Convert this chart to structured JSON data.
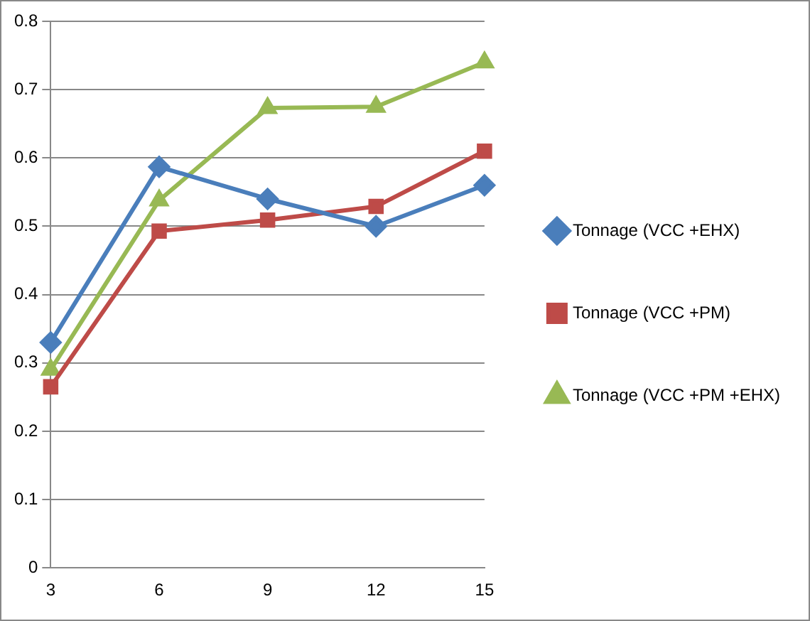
{
  "chart_data": {
    "type": "line",
    "categories": [
      "3",
      "6",
      "9",
      "12",
      "15"
    ],
    "series": [
      {
        "name": "Tonnage (VCC +EHX)",
        "color": "#4a7ebb",
        "marker": "diamond",
        "values": [
          0.33,
          0.587,
          0.54,
          0.5,
          0.56
        ]
      },
      {
        "name": "Tonnage (VCC +PM)",
        "color": "#be4b48",
        "marker": "square",
        "values": [
          0.265,
          0.493,
          0.509,
          0.529,
          0.61
        ]
      },
      {
        "name": "Tonnage (VCC +PM +EHX)",
        "color": "#98b954",
        "marker": "triangle",
        "values": [
          0.29,
          0.538,
          0.673,
          0.675,
          0.74
        ]
      }
    ],
    "ylim": [
      0,
      0.8
    ],
    "yticks": [
      0,
      0.1,
      0.2,
      0.3,
      0.4,
      0.5,
      0.6,
      0.7,
      0.8
    ],
    "grid": "y",
    "legend": "right",
    "line_style": "solid"
  }
}
